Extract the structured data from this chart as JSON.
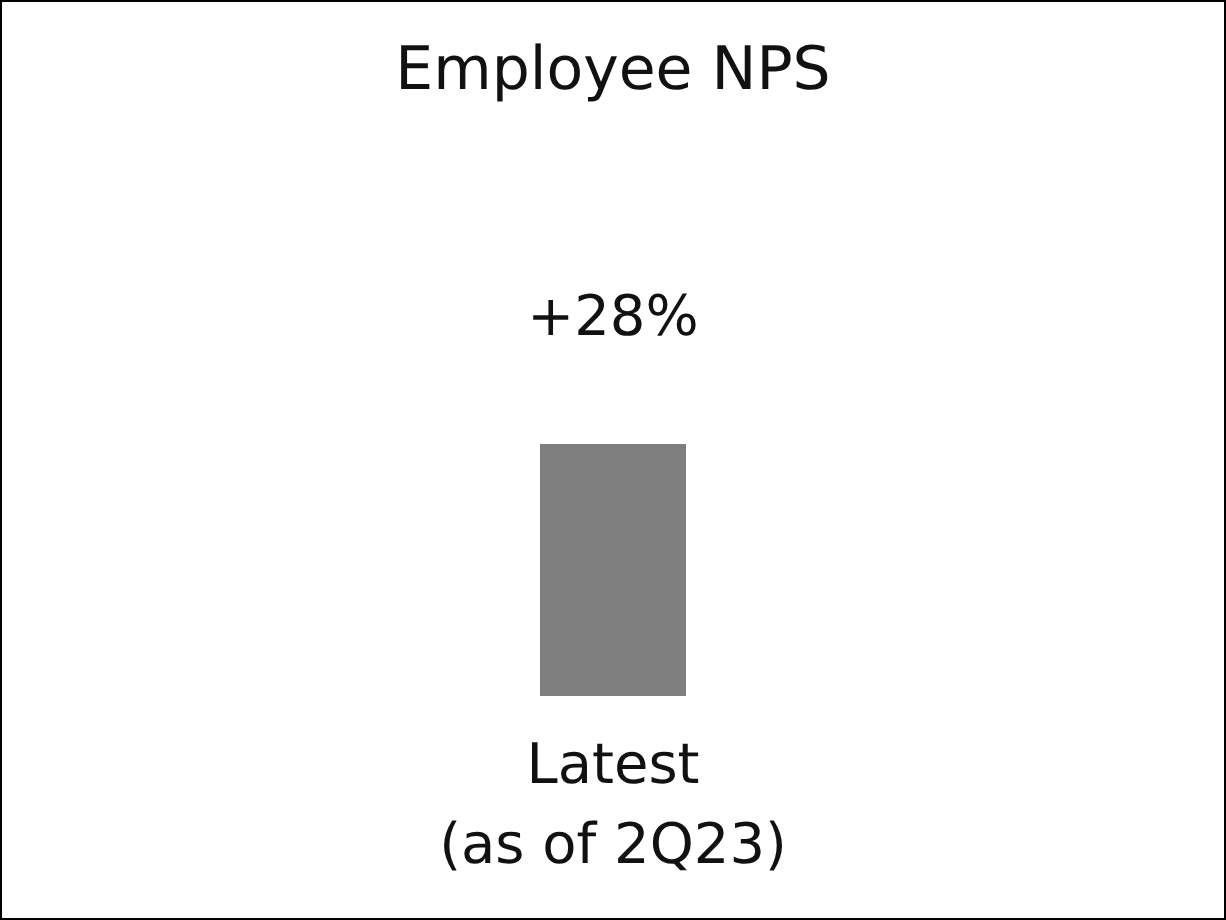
{
  "chart_data": {
    "type": "bar",
    "title": "Employee NPS",
    "categories": [
      "Latest\n(as of 2Q23)"
    ],
    "series": [
      {
        "color": "#7f7f7f",
        "values": [
          28
        ],
        "value_labels": [
          "+28%"
        ]
      }
    ]
  }
}
